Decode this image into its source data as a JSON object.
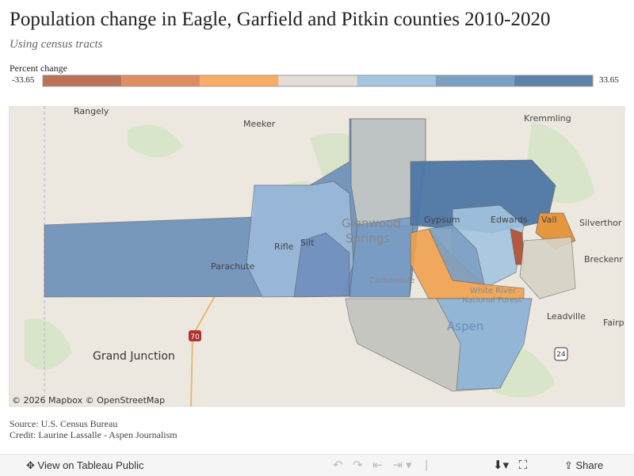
{
  "header": {
    "title": "Population change in Eagle, Garfield and Pitkin counties 2010-2020",
    "subtitle": "Using census tracts"
  },
  "legend": {
    "label": "Percent change",
    "min": -33.65,
    "max": 33.65,
    "colors": [
      "#bb7158",
      "#e08c63",
      "#f9ad66",
      "#e2ded6",
      "#a3c5df",
      "#7c9fc4",
      "#5f83a8"
    ]
  },
  "map": {
    "labels": {
      "rangely": "Rangely",
      "meeker": "Meeker",
      "kremmling": "Kremmling",
      "gypsum": "Gypsum",
      "edwards": "Edwards",
      "vail": "Vail",
      "silverthorne": "Silverthor",
      "glenwood": "Glenwood",
      "springs": "Springs",
      "rifle": "Rifle",
      "silt": "Silt",
      "parachute": "Parachute",
      "carbondale": "Carbondale",
      "white_river": "White River",
      "national_forest": "National Forest",
      "breckenridge": "Breckenr",
      "aspen": "Aspen",
      "leadville": "Leadville",
      "fairplay": "Fairp",
      "grand_junction": "Grand Junction"
    },
    "shields": [
      "70",
      "24"
    ],
    "attribution": "© 2026 Mapbox © OpenStreetMap"
  },
  "footer": {
    "source": "Source: U.S. Census Bureau",
    "credit": "Credit: Laurine Lassalle - Aspen Journalism"
  },
  "toolbar": {
    "view": "View on Tableau Public",
    "share": "Share"
  }
}
